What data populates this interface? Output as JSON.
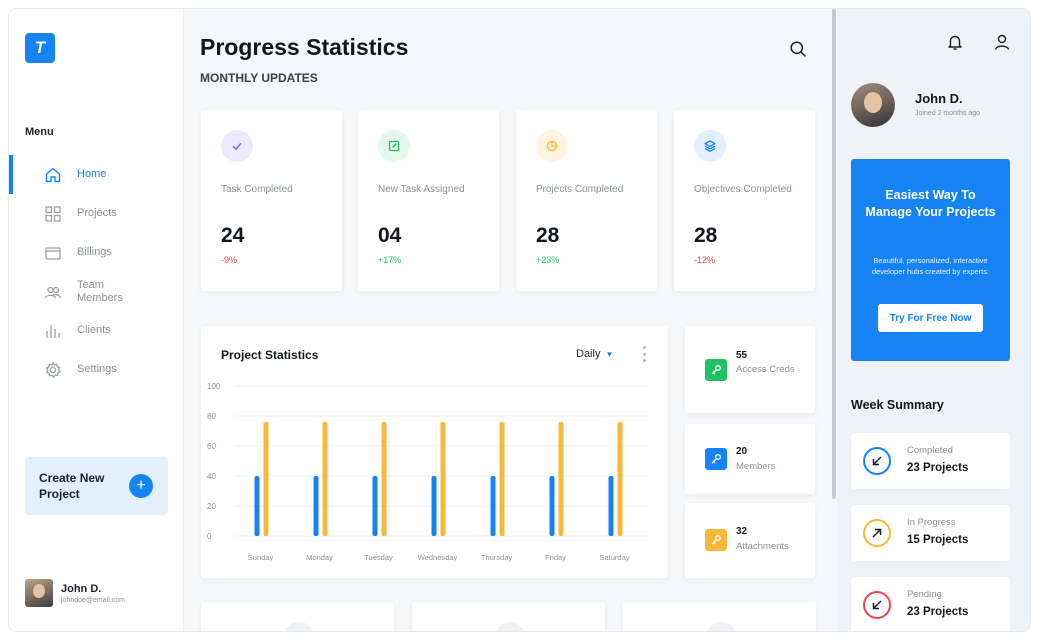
{
  "brand": {
    "logo_letter": "T",
    "color": "#1683f4"
  },
  "sidebar": {
    "menu_title": "Menu",
    "items": [
      {
        "label": "Home",
        "icon": "home-icon",
        "active": true
      },
      {
        "label": "Projects",
        "icon": "grid-icon",
        "active": false
      },
      {
        "label": "Billings",
        "icon": "wallet-icon",
        "active": false
      },
      {
        "label": "Team\nMembers",
        "icon": "team-icon",
        "active": false
      },
      {
        "label": "Clients",
        "icon": "bar-chart-icon",
        "active": false
      },
      {
        "label": "Settings",
        "icon": "gear-icon",
        "active": false
      }
    ],
    "create_project": {
      "label": "Create New Project",
      "button": "+"
    },
    "user": {
      "name": "John D.",
      "email": "johndoe@email.com"
    }
  },
  "header": {
    "title": "Progress Statistics",
    "subtitle": "MONTHLY UPDATES"
  },
  "stats": [
    {
      "label": "Task Completed",
      "value": "24",
      "delta": "-9%",
      "trend": "down",
      "icon": "check-icon",
      "icon_bg": "#ece9fd",
      "icon_color": "#7b6cf0"
    },
    {
      "label": "New Task Assigned",
      "value": "04",
      "delta": "+17%",
      "trend": "up",
      "icon": "edit-icon",
      "icon_bg": "#e4f7ec",
      "icon_color": "#22c063"
    },
    {
      "label": "Projects Completed",
      "value": "28",
      "delta": "+23%",
      "trend": "up",
      "icon": "pie-icon",
      "icon_bg": "#fff4e0",
      "icon_color": "#f8b93a"
    },
    {
      "label": "Objectives Completed",
      "value": "28",
      "delta": "-12%",
      "trend": "down",
      "icon": "layers-icon",
      "icon_bg": "#e4effd",
      "icon_color": "#1683f4"
    }
  ],
  "chart": {
    "title": "Project Statistics",
    "period": "Daily"
  },
  "chart_data": {
    "type": "bar",
    "categories": [
      "Sunday",
      "Monday",
      "Tuesday",
      "Wednesday",
      "Thursday",
      "Friday",
      "Saturday"
    ],
    "series": [
      {
        "color": "#1683f4",
        "values": [
          40,
          40,
          40,
          40,
          40,
          40,
          40
        ]
      },
      {
        "color": "#f8b93a",
        "values": [
          76,
          76,
          76,
          76,
          76,
          76,
          76
        ]
      }
    ],
    "yticks": [
      "100",
      "80",
      "60",
      "40",
      "20",
      "0"
    ],
    "ylim": [
      0,
      100
    ],
    "grid": true
  },
  "mini_stats": [
    {
      "value": "55",
      "label": "Access Creds",
      "icon": "key-icon",
      "color": "#22c063"
    },
    {
      "value": "20",
      "label": "Members",
      "icon": "key-icon",
      "color": "#1683f4"
    },
    {
      "value": "32",
      "label": "Attachments",
      "icon": "key-icon",
      "color": "#f8b93a"
    }
  ],
  "profile": {
    "name": "John D.",
    "joined": "Joined 2 months ago"
  },
  "promo": {
    "title": "Easiest Way To Manage Your Projects",
    "text": "Beautiful, personalized, interactive developer hubs created by experts.",
    "button": "Try For Free Now"
  },
  "week_summary": {
    "title": "Week Summary",
    "items": [
      {
        "label": "Completed",
        "value": "23 Projects",
        "icon": "arrow-down-left-icon",
        "color": "#1683f4"
      },
      {
        "label": "In Progress",
        "value": "15 Projects",
        "icon": "arrow-up-right-icon",
        "color": "#f8b93a"
      },
      {
        "label": "Pending",
        "value": "23 Projects",
        "icon": "arrow-down-left-icon",
        "color": "#f0474f"
      }
    ]
  }
}
